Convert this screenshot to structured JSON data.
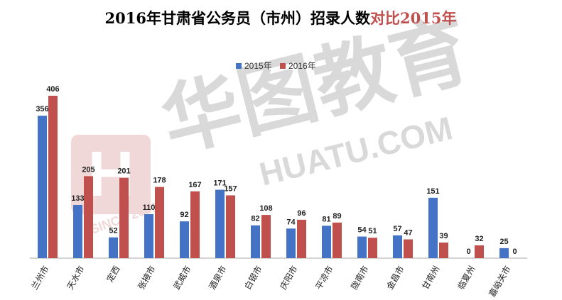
{
  "watermark": {
    "brand_cn": "华图教育",
    "brand_en": "HUATU.COM",
    "since": "SINCE 2001",
    "logo_char": "H"
  },
  "chart_data": {
    "type": "bar",
    "title_main": "2016年甘肃省公务员（市州）招录人数",
    "title_accent": "对比2015年",
    "categories": [
      "兰州市",
      "天水市",
      "定西",
      "张掖市",
      "武威市",
      "酒泉市",
      "白银市",
      "庆阳市",
      "平凉市",
      "陇南市",
      "金昌市",
      "甘南州",
      "临夏州",
      "嘉峪关市"
    ],
    "series": [
      {
        "name": "2015年",
        "color": "#4472c4",
        "values": [
          356,
          133,
          52,
          110,
          92,
          171,
          82,
          74,
          81,
          54,
          57,
          151,
          0,
          25
        ]
      },
      {
        "name": "2016年",
        "color": "#c0504d",
        "values": [
          406,
          205,
          201,
          178,
          167,
          157,
          108,
          96,
          89,
          51,
          47,
          39,
          32,
          0
        ]
      }
    ],
    "ylim": [
      0,
      420
    ],
    "grid": false,
    "legend_position": "top-center",
    "colors": {
      "title": "#000000",
      "title_accent": "#c0504d",
      "axis": "#aaaaaa"
    }
  }
}
